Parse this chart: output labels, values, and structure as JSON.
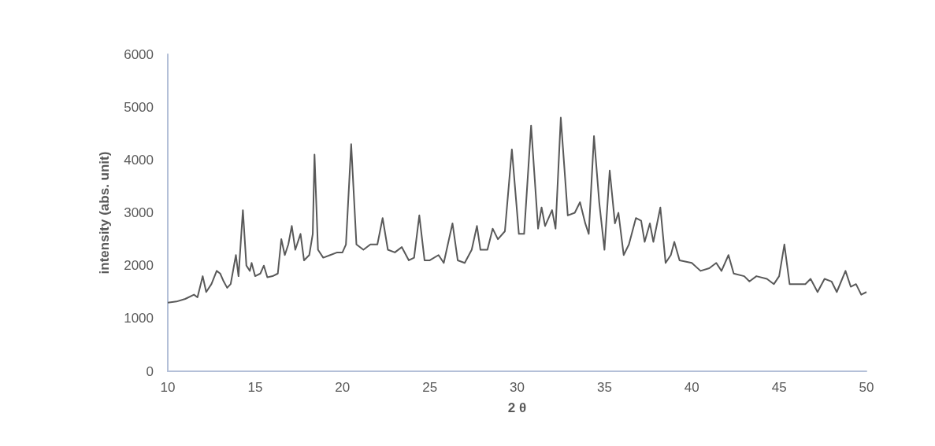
{
  "chart_data": {
    "type": "line",
    "xlabel": "2 θ",
    "ylabel": "intensity (abs. unit)",
    "x": [
      10,
      10.5,
      11,
      11.5,
      11.7,
      12,
      12.2,
      12.5,
      12.8,
      13,
      13.2,
      13.4,
      13.6,
      13.9,
      14.05,
      14.3,
      14.5,
      14.7,
      14.8,
      15,
      15.3,
      15.5,
      15.7,
      16,
      16.3,
      16.5,
      16.7,
      16.9,
      17.1,
      17.3,
      17.6,
      17.8,
      18.1,
      18.3,
      18.4,
      18.6,
      18.9,
      19.3,
      19.7,
      20,
      20.2,
      20.5,
      20.8,
      21.2,
      21.6,
      22,
      22.3,
      22.6,
      23,
      23.4,
      23.8,
      24.1,
      24.4,
      24.7,
      25,
      25.5,
      25.8,
      26.1,
      26.3,
      26.6,
      27,
      27.4,
      27.7,
      27.9,
      28.3,
      28.6,
      28.9,
      29.3,
      29.7,
      30.1,
      30.4,
      30.8,
      31.2,
      31.4,
      31.6,
      32,
      32.2,
      32.5,
      32.9,
      33.3,
      33.6,
      33.9,
      34.1,
      34.4,
      34.7,
      35,
      35.3,
      35.6,
      35.8,
      36.1,
      36.4,
      36.8,
      37.1,
      37.3,
      37.6,
      37.8,
      38.2,
      38.5,
      38.8,
      39,
      39.3,
      40,
      40.5,
      41,
      41.4,
      41.7,
      42.1,
      42.4,
      43,
      43.3,
      43.7,
      44.3,
      44.7,
      45,
      45.3,
      45.6,
      46,
      46.5,
      46.8,
      47.2,
      47.6,
      48,
      48.3,
      48.8,
      49.1,
      49.4,
      49.7,
      50
    ],
    "series": [
      {
        "color": "#595959",
        "values": [
          1300,
          1320,
          1370,
          1450,
          1400,
          1800,
          1500,
          1650,
          1900,
          1850,
          1700,
          1580,
          1650,
          2200,
          1800,
          3050,
          2000,
          1900,
          2050,
          1800,
          1850,
          2000,
          1780,
          1800,
          1850,
          2500,
          2200,
          2400,
          2750,
          2300,
          2600,
          2100,
          2200,
          2600,
          4100,
          2300,
          2150,
          2200,
          2250,
          2250,
          2400,
          4300,
          2400,
          2300,
          2400,
          2400,
          2900,
          2300,
          2250,
          2350,
          2100,
          2150,
          2950,
          2100,
          2100,
          2200,
          2050,
          2500,
          2800,
          2100,
          2050,
          2300,
          2750,
          2300,
          2300,
          2700,
          2500,
          2650,
          4200,
          2600,
          2600,
          4650,
          2700,
          3100,
          2750,
          3050,
          2700,
          4800,
          2950,
          3000,
          3200,
          2800,
          2600,
          4450,
          3200,
          2300,
          3800,
          2800,
          3000,
          2200,
          2400,
          2900,
          2850,
          2450,
          2800,
          2450,
          3100,
          2050,
          2200,
          2450,
          2100,
          2050,
          1900,
          1950,
          2050,
          1900,
          2200,
          1850,
          1800,
          1700,
          1800,
          1750,
          1650,
          1800,
          2400,
          1650,
          1650,
          1650,
          1750,
          1500,
          1750,
          1700,
          1500,
          1900,
          1600,
          1650,
          1450,
          1500
        ]
      }
    ],
    "xlim": [
      10,
      50
    ],
    "xticks": [
      10,
      15,
      20,
      25,
      30,
      35,
      40,
      45,
      50
    ],
    "ylim": [
      0,
      6000
    ],
    "yticks": [
      0,
      1000,
      2000,
      3000,
      4000,
      5000,
      6000
    ],
    "grid": false,
    "marker": "none",
    "line_style": "solid"
  }
}
